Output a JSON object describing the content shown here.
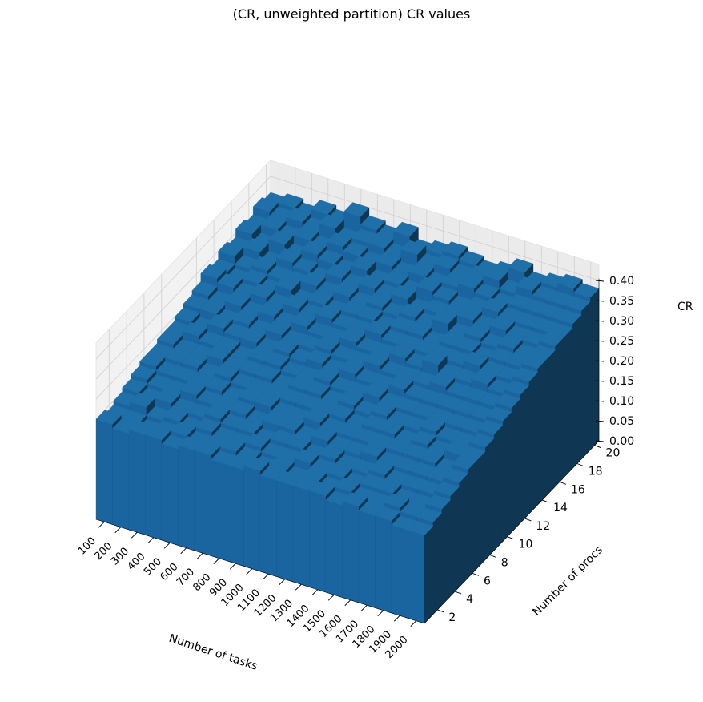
{
  "chart_data": {
    "type": "bar3d",
    "title": "(CR, unweighted partition) CR values",
    "xlabel": "Number of tasks",
    "ylabel": "Number of procs",
    "zlabel": "CR",
    "x_ticks": [
      "100",
      "200",
      "300",
      "400",
      "500",
      "600",
      "700",
      "800",
      "900",
      "1000",
      "1100",
      "1200",
      "1300",
      "1400",
      "1500",
      "1600",
      "1700",
      "1800",
      "1900",
      "2000"
    ],
    "y_ticks": [
      "2",
      "4",
      "6",
      "8",
      "10",
      "12",
      "14",
      "16",
      "18",
      "20"
    ],
    "z_ticks": [
      "0.00",
      "0.05",
      "0.10",
      "0.15",
      "0.20",
      "0.25",
      "0.30",
      "0.35",
      "0.40"
    ],
    "zlim": [
      0,
      0.4
    ],
    "x": [
      100,
      200,
      300,
      400,
      500,
      600,
      700,
      800,
      900,
      1000,
      1100,
      1200,
      1300,
      1400,
      1500,
      1600,
      1700,
      1800,
      1900,
      2000
    ],
    "y": [
      1,
      2,
      3,
      4,
      5,
      6,
      7,
      8,
      9,
      10,
      11,
      12,
      13,
      14,
      15,
      16,
      17,
      18,
      19,
      20
    ],
    "values": [
      [
        0.25,
        0.24,
        0.25,
        0.25,
        0.24,
        0.25,
        0.25,
        0.24,
        0.24,
        0.25,
        0.24,
        0.24,
        0.24,
        0.24,
        0.23,
        0.24,
        0.23,
        0.23,
        0.22,
        0.22
      ],
      [
        0.24,
        0.24,
        0.23,
        0.24,
        0.25,
        0.24,
        0.24,
        0.25,
        0.24,
        0.23,
        0.24,
        0.23,
        0.24,
        0.23,
        0.24,
        0.23,
        0.23,
        0.24,
        0.23,
        0.23
      ],
      [
        0.25,
        0.26,
        0.24,
        0.25,
        0.24,
        0.25,
        0.24,
        0.24,
        0.25,
        0.24,
        0.24,
        0.25,
        0.24,
        0.24,
        0.23,
        0.24,
        0.24,
        0.23,
        0.23,
        0.24
      ],
      [
        0.26,
        0.25,
        0.26,
        0.25,
        0.25,
        0.26,
        0.25,
        0.25,
        0.24,
        0.25,
        0.25,
        0.24,
        0.25,
        0.24,
        0.24,
        0.25,
        0.24,
        0.24,
        0.24,
        0.25
      ],
      [
        0.27,
        0.26,
        0.26,
        0.27,
        0.26,
        0.26,
        0.26,
        0.25,
        0.26,
        0.26,
        0.25,
        0.26,
        0.25,
        0.25,
        0.26,
        0.25,
        0.25,
        0.25,
        0.25,
        0.26
      ],
      [
        0.28,
        0.27,
        0.27,
        0.27,
        0.27,
        0.26,
        0.27,
        0.27,
        0.26,
        0.26,
        0.27,
        0.26,
        0.26,
        0.26,
        0.26,
        0.26,
        0.26,
        0.26,
        0.25,
        0.27
      ],
      [
        0.28,
        0.28,
        0.28,
        0.27,
        0.28,
        0.27,
        0.27,
        0.27,
        0.27,
        0.27,
        0.27,
        0.27,
        0.26,
        0.27,
        0.27,
        0.26,
        0.27,
        0.26,
        0.27,
        0.27
      ],
      [
        0.29,
        0.28,
        0.28,
        0.29,
        0.28,
        0.28,
        0.28,
        0.27,
        0.28,
        0.28,
        0.27,
        0.28,
        0.27,
        0.28,
        0.27,
        0.27,
        0.28,
        0.27,
        0.27,
        0.28
      ],
      [
        0.29,
        0.3,
        0.29,
        0.29,
        0.28,
        0.29,
        0.29,
        0.28,
        0.28,
        0.29,
        0.28,
        0.28,
        0.29,
        0.28,
        0.28,
        0.28,
        0.28,
        0.28,
        0.28,
        0.29
      ],
      [
        0.3,
        0.29,
        0.31,
        0.3,
        0.3,
        0.29,
        0.3,
        0.29,
        0.3,
        0.29,
        0.3,
        0.29,
        0.29,
        0.3,
        0.29,
        0.29,
        0.29,
        0.29,
        0.29,
        0.3
      ],
      [
        0.31,
        0.31,
        0.3,
        0.31,
        0.3,
        0.31,
        0.3,
        0.3,
        0.31,
        0.3,
        0.3,
        0.31,
        0.3,
        0.3,
        0.3,
        0.31,
        0.3,
        0.3,
        0.3,
        0.31
      ],
      [
        0.32,
        0.31,
        0.32,
        0.31,
        0.32,
        0.31,
        0.32,
        0.31,
        0.31,
        0.32,
        0.31,
        0.31,
        0.32,
        0.31,
        0.33,
        0.31,
        0.31,
        0.32,
        0.31,
        0.32
      ],
      [
        0.34,
        0.33,
        0.32,
        0.33,
        0.32,
        0.33,
        0.32,
        0.33,
        0.32,
        0.32,
        0.33,
        0.32,
        0.32,
        0.32,
        0.32,
        0.32,
        0.33,
        0.32,
        0.32,
        0.33
      ],
      [
        0.33,
        0.32,
        0.33,
        0.32,
        0.34,
        0.32,
        0.33,
        0.32,
        0.33,
        0.33,
        0.32,
        0.33,
        0.33,
        0.32,
        0.33,
        0.33,
        0.32,
        0.33,
        0.33,
        0.34
      ],
      [
        0.35,
        0.33,
        0.34,
        0.33,
        0.33,
        0.34,
        0.33,
        0.34,
        0.33,
        0.34,
        0.33,
        0.34,
        0.33,
        0.35,
        0.33,
        0.34,
        0.33,
        0.34,
        0.33,
        0.34
      ],
      [
        0.34,
        0.35,
        0.33,
        0.35,
        0.34,
        0.33,
        0.35,
        0.34,
        0.35,
        0.34,
        0.35,
        0.33,
        0.34,
        0.34,
        0.35,
        0.34,
        0.35,
        0.34,
        0.34,
        0.35
      ],
      [
        0.36,
        0.34,
        0.36,
        0.34,
        0.36,
        0.35,
        0.34,
        0.36,
        0.34,
        0.35,
        0.34,
        0.36,
        0.35,
        0.34,
        0.35,
        0.36,
        0.35,
        0.35,
        0.35,
        0.35
      ],
      [
        0.35,
        0.36,
        0.35,
        0.36,
        0.35,
        0.37,
        0.36,
        0.35,
        0.36,
        0.35,
        0.36,
        0.35,
        0.36,
        0.37,
        0.36,
        0.35,
        0.36,
        0.36,
        0.36,
        0.36
      ],
      [
        0.37,
        0.36,
        0.37,
        0.36,
        0.38,
        0.36,
        0.37,
        0.37,
        0.36,
        0.38,
        0.36,
        0.37,
        0.36,
        0.37,
        0.38,
        0.36,
        0.38,
        0.37,
        0.37,
        0.37
      ],
      [
        0.36,
        0.37,
        0.36,
        0.38,
        0.37,
        0.4,
        0.38,
        0.37,
        0.39,
        0.36,
        0.37,
        0.38,
        0.37,
        0.36,
        0.37,
        0.39,
        0.37,
        0.38,
        0.39,
        0.38
      ]
    ],
    "grid": true,
    "bar_color": "#1f6fa8"
  }
}
